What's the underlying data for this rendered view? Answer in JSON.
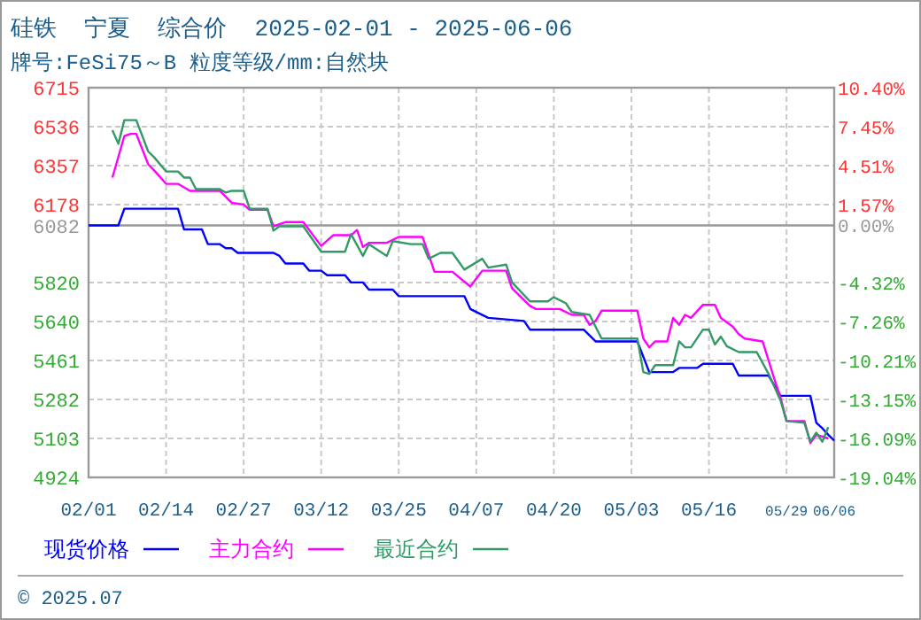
{
  "chart_data": {
    "type": "line",
    "title": "硅铁  宁夏  综合价  2025-02-01 - 2025-06-06",
    "subtitle": "牌号:FeSi75～B 粒度等级/mm:自然块",
    "xlim": [
      "2025-02-01",
      "2025-06-06"
    ],
    "xticks": [
      {
        "value": "2025-02-01",
        "label": "02/01"
      },
      {
        "value": "2025-02-14",
        "label": "02/14"
      },
      {
        "value": "2025-02-27",
        "label": "02/27"
      },
      {
        "value": "2025-03-12",
        "label": "03/12"
      },
      {
        "value": "2025-03-25",
        "label": "03/25"
      },
      {
        "value": "2025-04-07",
        "label": "04/07"
      },
      {
        "value": "2025-04-20",
        "label": "04/20"
      },
      {
        "value": "2025-05-03",
        "label": "05/03"
      },
      {
        "value": "2025-05-16",
        "label": "05/16"
      },
      {
        "value": "2025-05-29",
        "label": "05/29"
      },
      {
        "value": "2025-06-06",
        "label": "06/06"
      }
    ],
    "ylim": [
      4924,
      6715
    ],
    "yticks": [
      4924,
      5103,
      5282,
      5461,
      5640,
      5820,
      6082,
      6178,
      6357,
      6536,
      6715
    ],
    "y2lim": [
      -19.04,
      10.4
    ],
    "y2ticks": [
      {
        "value": -19.04,
        "label": "-19.04%"
      },
      {
        "value": -16.09,
        "label": "-16.09%"
      },
      {
        "value": -13.15,
        "label": "-13.15%"
      },
      {
        "value": -10.21,
        "label": "-10.21%"
      },
      {
        "value": -7.26,
        "label": "-7.26%"
      },
      {
        "value": -4.32,
        "label": "-4.32%"
      },
      {
        "value": 0,
        "label": "0.00%"
      },
      {
        "value": 1.57,
        "label": "1.57%"
      },
      {
        "value": 4.51,
        "label": "4.51%"
      },
      {
        "value": 7.45,
        "label": "7.45%"
      },
      {
        "value": 10.4,
        "label": "10.40%"
      }
    ],
    "ref_lines": [
      {
        "axis": "y",
        "value": 6082,
        "color": "#999999"
      }
    ],
    "grid": true,
    "legend": "bottom",
    "marker": "none",
    "line_style": "solid",
    "annotations": [
      "© 2025.07"
    ],
    "series": [
      {
        "name": "现货价格",
        "color": "#0000ff",
        "x": [
          "2025-02-01",
          "2025-02-06",
          "2025-02-07",
          "2025-02-16",
          "2025-02-17",
          "2025-02-20",
          "2025-02-21",
          "2025-02-23",
          "2025-02-24",
          "2025-02-25",
          "2025-02-26",
          "2025-03-04",
          "2025-03-05",
          "2025-03-06",
          "2025-03-09",
          "2025-03-10",
          "2025-03-12",
          "2025-03-13",
          "2025-03-16",
          "2025-03-17",
          "2025-03-19",
          "2025-03-20",
          "2025-03-24",
          "2025-03-25",
          "2025-04-05",
          "2025-04-06",
          "2025-04-09",
          "2025-04-15",
          "2025-04-16",
          "2025-04-25",
          "2025-04-27",
          "2025-05-04",
          "2025-05-06",
          "2025-05-10",
          "2025-05-11",
          "2025-05-14",
          "2025-05-15",
          "2025-05-20",
          "2025-05-21",
          "2025-05-26",
          "2025-05-28",
          "2025-06-02",
          "2025-06-03",
          "2025-06-04",
          "2025-06-05",
          "2025-06-06"
        ],
        "values": [
          6082,
          6082,
          6159,
          6159,
          6064,
          6064,
          5996,
          5996,
          5977,
          5977,
          5956,
          5956,
          5942,
          5907,
          5907,
          5874,
          5874,
          5853,
          5853,
          5820,
          5820,
          5787,
          5787,
          5757,
          5757,
          5698,
          5657,
          5643,
          5603,
          5603,
          5549,
          5549,
          5408,
          5408,
          5427,
          5427,
          5446,
          5446,
          5392,
          5392,
          5299,
          5299,
          5175,
          5150,
          5120,
          5093
        ]
      },
      {
        "name": "主力合约",
        "color": "#ff00ff",
        "x": [
          "2025-02-05",
          "2025-02-07",
          "2025-02-08",
          "2025-02-09",
          "2025-02-11",
          "2025-02-12",
          "2025-02-14",
          "2025-02-16",
          "2025-02-18",
          "2025-02-23",
          "2025-02-25",
          "2025-02-27",
          "2025-02-28",
          "2025-03-03",
          "2025-03-04",
          "2025-03-06",
          "2025-03-09",
          "2025-03-12",
          "2025-03-14",
          "2025-03-17",
          "2025-03-18",
          "2025-03-19",
          "2025-03-20",
          "2025-03-23",
          "2025-03-25",
          "2025-03-29",
          "2025-03-31",
          "2025-04-03",
          "2025-04-06",
          "2025-04-08",
          "2025-04-12",
          "2025-04-13",
          "2025-04-16",
          "2025-04-17",
          "2025-04-19",
          "2025-04-20",
          "2025-04-21",
          "2025-04-23",
          "2025-04-25",
          "2025-04-26",
          "2025-04-27",
          "2025-04-28",
          "2025-05-04",
          "2025-05-05",
          "2025-05-06",
          "2025-05-07",
          "2025-05-09",
          "2025-05-10",
          "2025-05-11",
          "2025-05-12",
          "2025-05-13",
          "2025-05-15",
          "2025-05-17",
          "2025-05-18",
          "2025-05-20",
          "2025-05-21",
          "2025-05-22",
          "2025-05-25",
          "2025-05-27",
          "2025-05-28",
          "2025-05-29",
          "2025-06-01",
          "2025-06-02",
          "2025-06-03",
          "2025-06-05"
        ],
        "values": [
          6302,
          6493,
          6503,
          6503,
          6363,
          6335,
          6273,
          6273,
          6241,
          6241,
          6186,
          6178,
          6154,
          6154,
          6078,
          6097,
          6097,
          5988,
          6037,
          6037,
          6061,
          5983,
          6002,
          6002,
          6029,
          6029,
          5869,
          5869,
          5801,
          5874,
          5874,
          5793,
          5712,
          5698,
          5698,
          5698,
          5698,
          5671,
          5671,
          5625,
          5643,
          5690,
          5690,
          5562,
          5522,
          5549,
          5549,
          5657,
          5625,
          5671,
          5657,
          5717,
          5717,
          5657,
          5617,
          5582,
          5562,
          5549,
          5373,
          5291,
          5183,
          5183,
          5082,
          5120,
          5103
        ]
      },
      {
        "name": "最近合约",
        "color": "#339966",
        "x": [
          "2025-02-05",
          "2025-02-06",
          "2025-02-07",
          "2025-02-09",
          "2025-02-11",
          "2025-02-12",
          "2025-02-14",
          "2025-02-16",
          "2025-02-17",
          "2025-02-18",
          "2025-02-19",
          "2025-02-23",
          "2025-02-24",
          "2025-02-25",
          "2025-02-27",
          "2025-02-28",
          "2025-03-03",
          "2025-03-04",
          "2025-03-05",
          "2025-03-09",
          "2025-03-12",
          "2025-03-16",
          "2025-03-17",
          "2025-03-19",
          "2025-03-20",
          "2025-03-23",
          "2025-03-24",
          "2025-03-27",
          "2025-03-29",
          "2025-03-30",
          "2025-04-01",
          "2025-04-03",
          "2025-04-05",
          "2025-04-08",
          "2025-04-09",
          "2025-04-12",
          "2025-04-13",
          "2025-04-16",
          "2025-04-19",
          "2025-04-20",
          "2025-04-22",
          "2025-04-23",
          "2025-04-26",
          "2025-04-28",
          "2025-05-04",
          "2025-05-05",
          "2025-05-06",
          "2025-05-07",
          "2025-05-10",
          "2025-05-11",
          "2025-05-12",
          "2025-05-13",
          "2025-05-15",
          "2025-05-16",
          "2025-05-17",
          "2025-05-18",
          "2025-05-19",
          "2025-05-21",
          "2025-05-24",
          "2025-05-26",
          "2025-05-28",
          "2025-05-29",
          "2025-06-01",
          "2025-06-02",
          "2025-06-03",
          "2025-06-04",
          "2025-06-05"
        ],
        "values": [
          6520,
          6457,
          6566,
          6566,
          6422,
          6395,
          6330,
          6330,
          6302,
          6302,
          6249,
          6249,
          6233,
          6241,
          6241,
          6159,
          6159,
          6058,
          6078,
          6078,
          5961,
          5961,
          6042,
          5942,
          5996,
          5942,
          6010,
          5996,
          5996,
          5929,
          5956,
          5956,
          5879,
          5929,
          5888,
          5902,
          5820,
          5733,
          5733,
          5752,
          5725,
          5684,
          5671,
          5562,
          5562,
          5408,
          5400,
          5440,
          5440,
          5549,
          5522,
          5522,
          5603,
          5603,
          5535,
          5571,
          5527,
          5500,
          5500,
          5400,
          5277,
          5183,
          5175,
          5088,
          5130,
          5088,
          5155
        ]
      }
    ]
  }
}
